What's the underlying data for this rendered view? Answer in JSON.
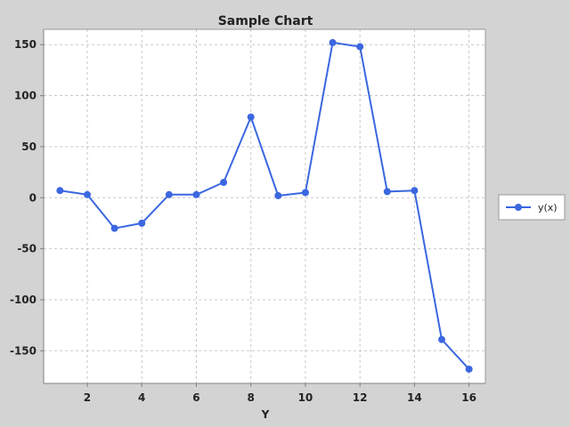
{
  "chart_data": {
    "type": "line",
    "title": "Sample Chart",
    "xlabel": "Y",
    "ylabel": "",
    "xlim": [
      0.4,
      16.6
    ],
    "ylim": [
      -182,
      165
    ],
    "x_ticks": [
      2,
      4,
      6,
      8,
      10,
      12,
      14,
      16
    ],
    "y_ticks": [
      150,
      100,
      50,
      0,
      -50,
      -100,
      -150
    ],
    "grid": true,
    "legend_position": "right",
    "series": [
      {
        "name": "y(x)",
        "color": "#3b67e0",
        "x": [
          1,
          2,
          3,
          4,
          5,
          6,
          7,
          8,
          9,
          10,
          11,
          12,
          13,
          14,
          15,
          16
        ],
        "y": [
          7,
          3,
          -30,
          -25,
          3,
          3,
          15,
          79,
          2,
          5,
          152,
          148,
          6,
          7,
          -139,
          -168
        ]
      }
    ]
  }
}
